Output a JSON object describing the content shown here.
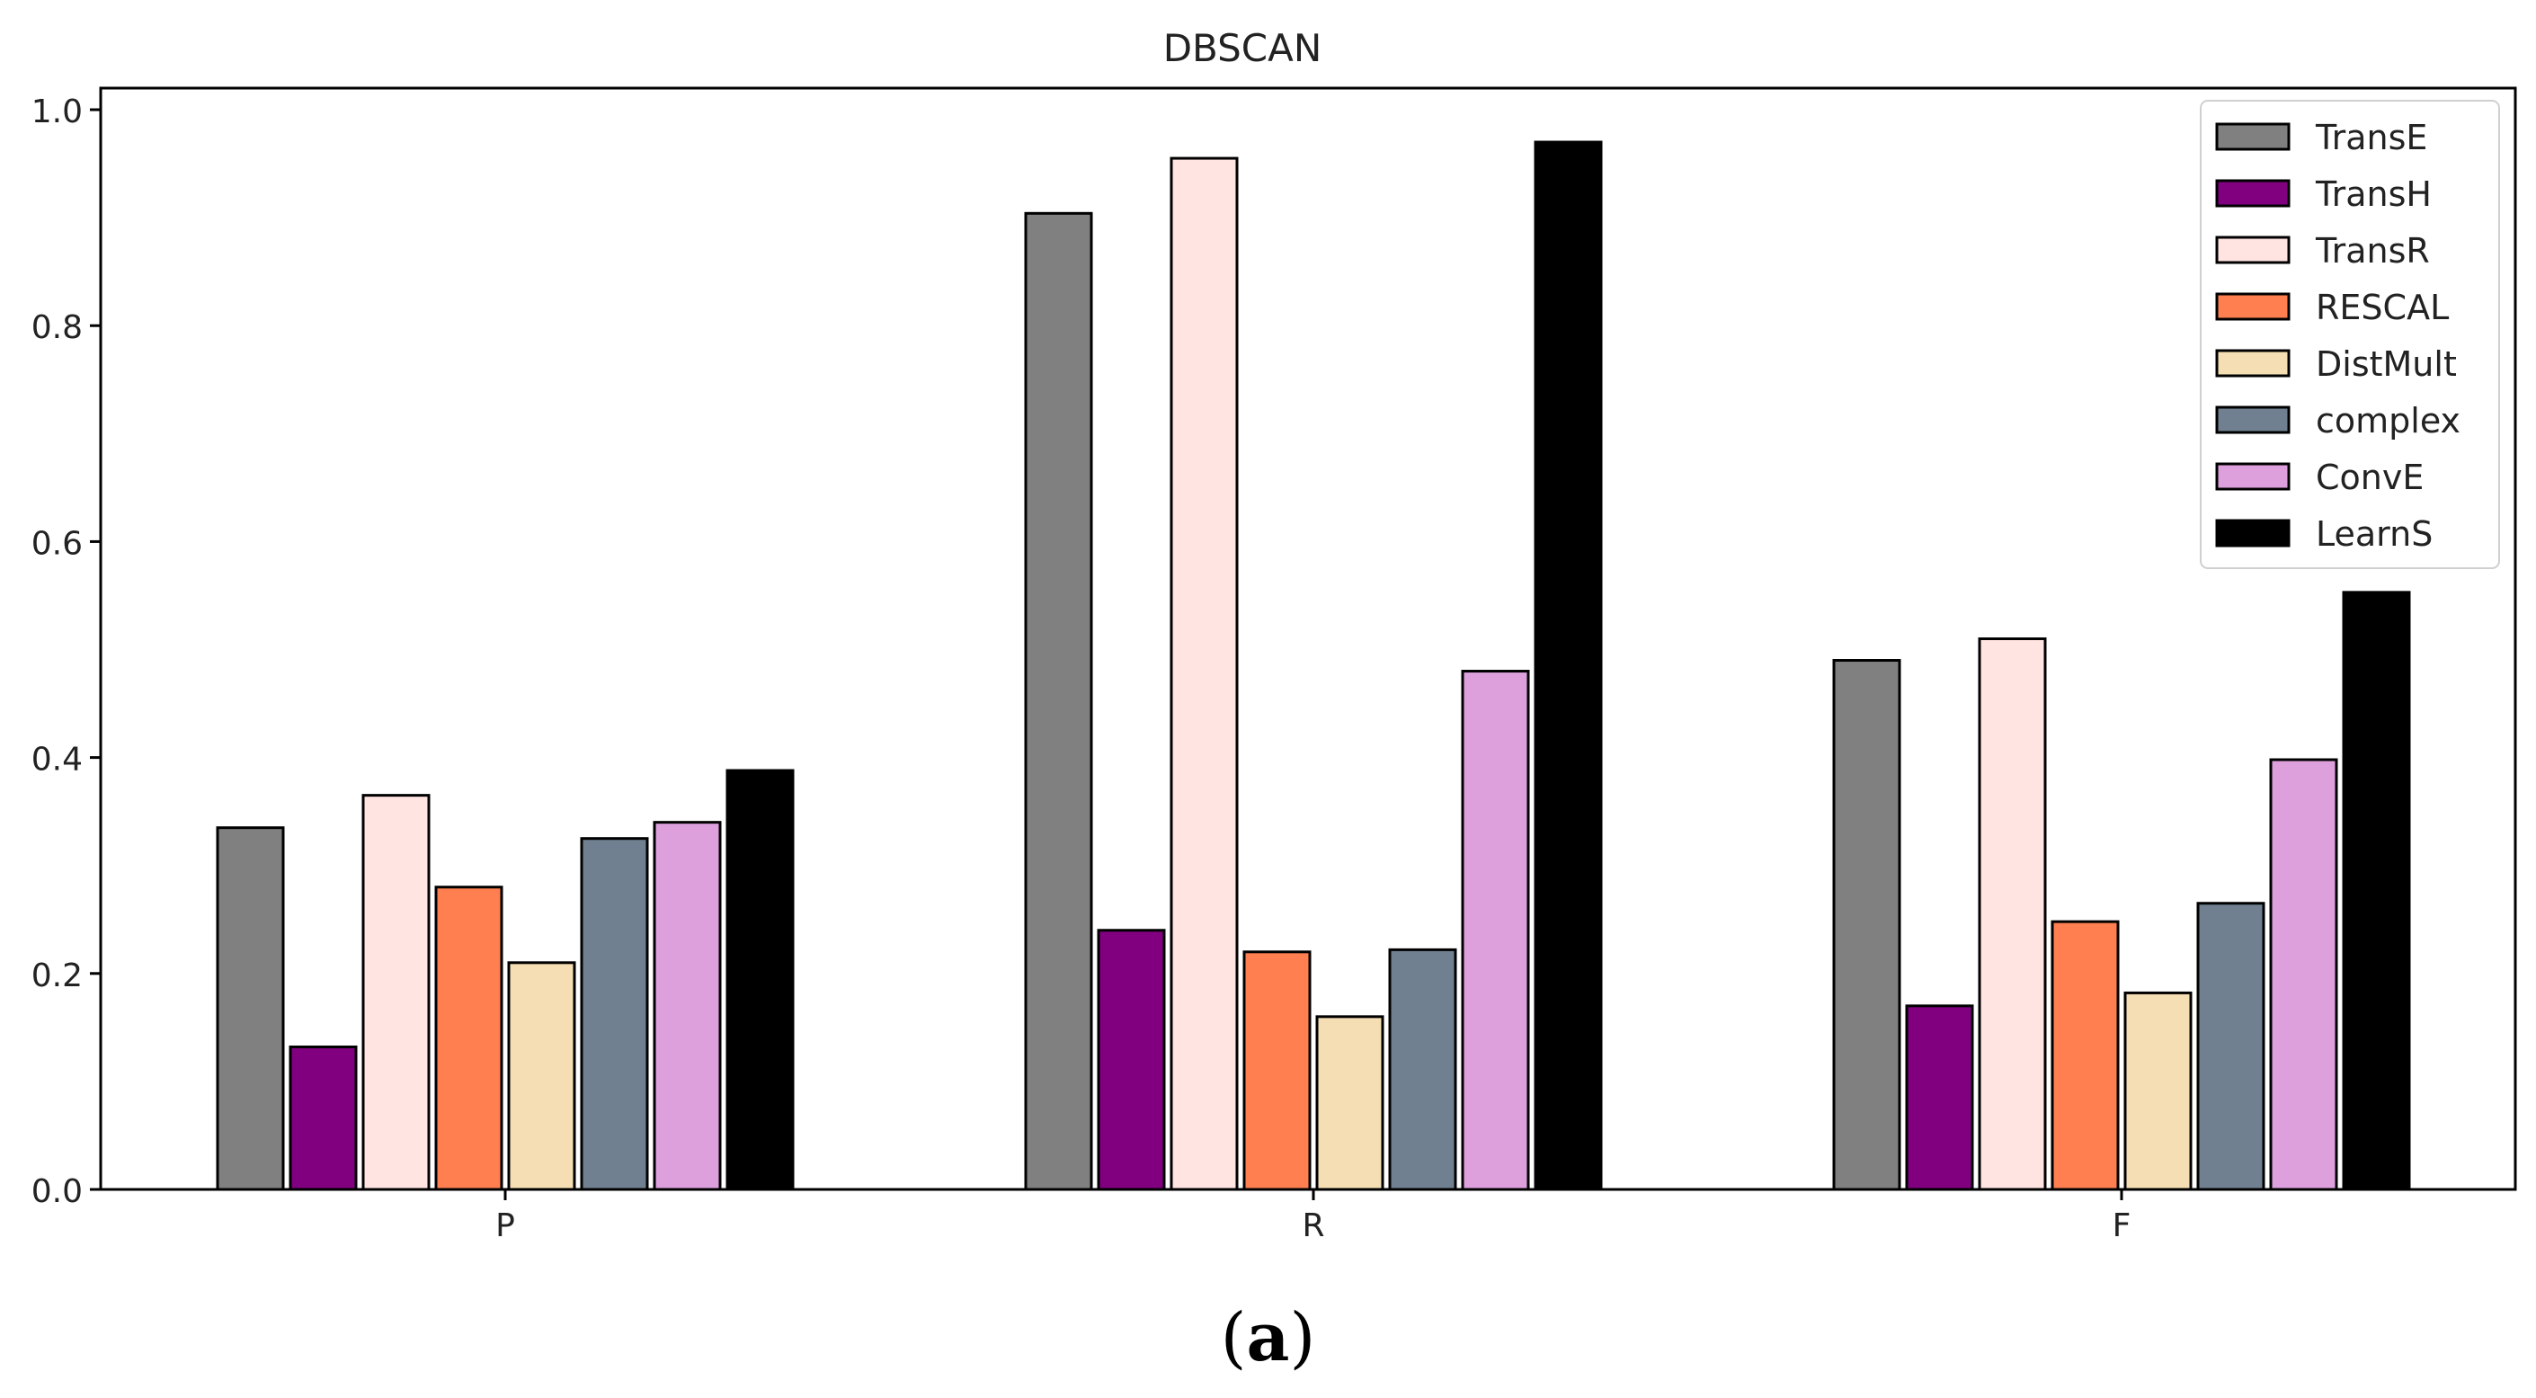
{
  "chart_data": {
    "type": "bar",
    "title": "DBSCAN",
    "xlabel": "",
    "ylabel": "",
    "categories": [
      "P",
      "R",
      "F"
    ],
    "ylim": [
      0.0,
      1.02
    ],
    "yticks": [
      "0.0",
      "0.2",
      "0.4",
      "0.6",
      "0.8",
      "1.0"
    ],
    "grid": false,
    "legend_position": "top-right",
    "series": [
      {
        "name": "TransE",
        "color": "#808080",
        "values": [
          0.335,
          0.904,
          0.49
        ]
      },
      {
        "name": "TransH",
        "color": "#800080",
        "values": [
          0.132,
          0.24,
          0.17
        ]
      },
      {
        "name": "TransR",
        "color": "#ffe4e1",
        "values": [
          0.365,
          0.955,
          0.51
        ]
      },
      {
        "name": "RESCAL",
        "color": "#ff7f50",
        "values": [
          0.28,
          0.22,
          0.248
        ]
      },
      {
        "name": "DistMult",
        "color": "#f5deb3",
        "values": [
          0.21,
          0.16,
          0.182
        ]
      },
      {
        "name": "complex",
        "color": "#708090",
        "values": [
          0.325,
          0.222,
          0.265
        ]
      },
      {
        "name": "ConvE",
        "color": "#dda0dd",
        "values": [
          0.34,
          0.48,
          0.398
        ]
      },
      {
        "name": "LearnS",
        "color": "#000000",
        "values": [
          0.388,
          0.97,
          0.553
        ]
      }
    ]
  },
  "caption": {
    "label": "(a)",
    "letter": "a"
  }
}
